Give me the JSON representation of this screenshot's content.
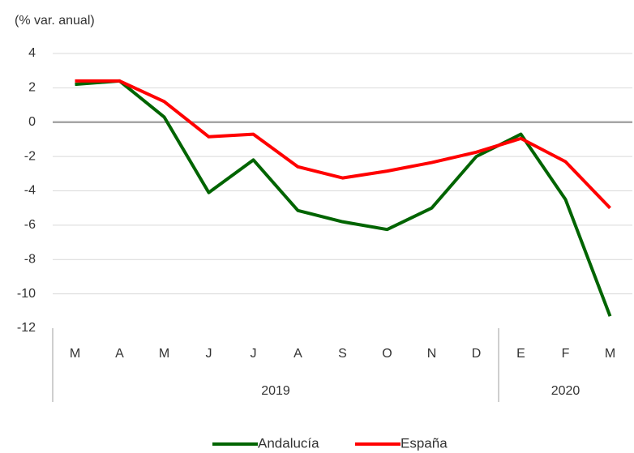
{
  "chart_data": {
    "type": "line",
    "y_axis_label": "(% var. anual)",
    "categories": [
      "M",
      "A",
      "M",
      "J",
      "J",
      "A",
      "S",
      "O",
      "N",
      "D",
      "E",
      "F",
      "M"
    ],
    "groups": [
      {
        "label": "2019",
        "count": 10
      },
      {
        "label": "2020",
        "count": 3
      }
    ],
    "series": [
      {
        "name": "Andalucía",
        "color": "#006400",
        "values": [
          2.2,
          2.4,
          0.3,
          -4.1,
          -2.2,
          -5.15,
          -5.8,
          -6.25,
          -5.0,
          -2.0,
          -0.7,
          -4.5,
          -11.3
        ]
      },
      {
        "name": "España",
        "color": "#ff0000",
        "values": [
          2.4,
          2.4,
          1.2,
          -0.85,
          -0.7,
          -2.6,
          -3.25,
          -2.85,
          -2.35,
          -1.75,
          -0.95,
          -2.3,
          -5.0
        ]
      }
    ],
    "ylim": [
      -12,
      4
    ],
    "yticks": [
      -12,
      -10,
      -8,
      -6,
      -4,
      -2,
      0,
      2,
      4
    ],
    "grid": true
  }
}
